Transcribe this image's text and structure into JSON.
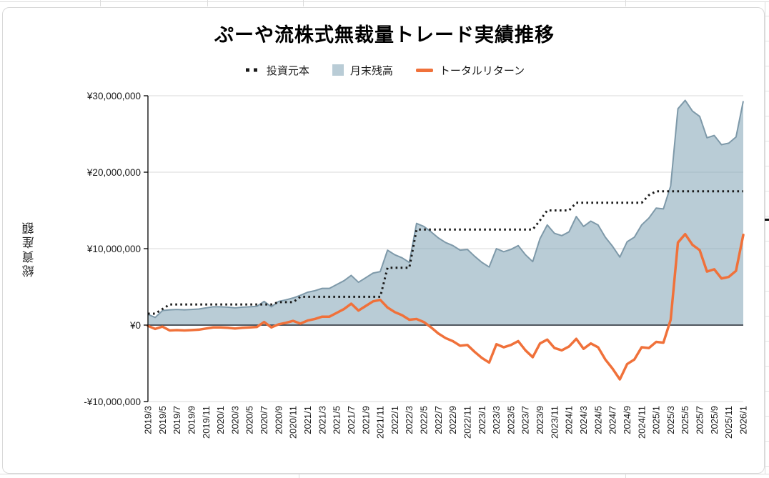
{
  "chart_data": {
    "type": "area",
    "title": "ぷーや流株式無裁量トレード実績推移",
    "ylabel": "総資産額",
    "values_unit": "million JPY",
    "ylim_m": [
      -10,
      30
    ],
    "grid": true,
    "legend_position": "top",
    "x_tick_every": 2,
    "y_ticks": [
      {
        "label": "¥30,000,000",
        "value_m": 30
      },
      {
        "label": "¥20,000,000",
        "value_m": 20
      },
      {
        "label": "¥10,000,000",
        "value_m": 10
      },
      {
        "label": "¥0",
        "value_m": 0
      },
      {
        "label": "-¥10,000,000",
        "value_m": -10
      }
    ],
    "x": [
      "2019/3",
      "2019/4",
      "2019/5",
      "2019/6",
      "2019/7",
      "2019/8",
      "2019/9",
      "2019/10",
      "2019/11",
      "2019/12",
      "2020/1",
      "2020/2",
      "2020/3",
      "2020/4",
      "2020/5",
      "2020/6",
      "2020/7",
      "2020/8",
      "2020/9",
      "2020/10",
      "2020/11",
      "2020/12",
      "2021/1",
      "2021/2",
      "2021/3",
      "2021/4",
      "2021/5",
      "2021/6",
      "2021/7",
      "2021/8",
      "2021/9",
      "2021/10",
      "2021/11",
      "2021/12",
      "2022/1",
      "2022/2",
      "2022/3",
      "2022/4",
      "2022/5",
      "2022/6",
      "2022/7",
      "2022/8",
      "2022/9",
      "2022/10",
      "2022/11",
      "2022/12",
      "2023/1",
      "2023/2",
      "2023/3",
      "2023/4",
      "2023/5",
      "2023/6",
      "2023/7",
      "2023/8",
      "2023/9",
      "2023/10",
      "2023/11",
      "2023/12",
      "2024/1",
      "2024/2",
      "2024/3",
      "2024/4",
      "2024/5",
      "2024/6",
      "2024/7",
      "2024/8",
      "2024/9",
      "2024/10",
      "2024/11",
      "2024/12",
      "2025/1",
      "2025/2",
      "2025/3",
      "2025/4",
      "2025/5",
      "2025/6",
      "2025/7",
      "2025/8",
      "2025/9",
      "2025/10",
      "2025/11",
      "2025/12",
      "2026/1"
    ],
    "series": [
      {
        "name": "投資元本",
        "style": "dotted-line",
        "color": "#1a1a1a",
        "values_m": [
          1.5,
          1.5,
          2.1,
          2.7,
          2.7,
          2.7,
          2.7,
          2.7,
          2.7,
          2.7,
          2.7,
          2.7,
          2.7,
          2.7,
          2.7,
          2.7,
          2.7,
          2.7,
          3.0,
          3.0,
          3.0,
          3.7,
          3.7,
          3.7,
          3.7,
          3.7,
          3.7,
          3.7,
          3.7,
          3.7,
          3.7,
          3.7,
          3.7,
          7.5,
          7.5,
          7.5,
          7.5,
          12.5,
          12.5,
          12.5,
          12.5,
          12.5,
          12.5,
          12.5,
          12.5,
          12.5,
          12.5,
          12.5,
          12.5,
          12.5,
          12.5,
          12.5,
          12.5,
          12.5,
          13.7,
          15.0,
          15.0,
          15.0,
          15.0,
          16.0,
          16.0,
          16.0,
          16.0,
          16.0,
          16.0,
          16.0,
          16.0,
          16.0,
          16.0,
          17.0,
          17.5,
          17.5,
          17.5,
          17.5,
          17.5,
          17.5,
          17.5,
          17.5,
          17.5,
          17.5,
          17.5,
          17.5,
          17.5
        ]
      },
      {
        "name": "月末残高",
        "style": "area",
        "color": "#b9ccd6",
        "stroke": "#7e99a9",
        "values_m": [
          1.4,
          1.0,
          1.9,
          2.0,
          2.05,
          2.0,
          2.05,
          2.1,
          2.25,
          2.4,
          2.4,
          2.35,
          2.25,
          2.35,
          2.4,
          2.45,
          3.1,
          2.4,
          3.1,
          3.3,
          3.55,
          3.9,
          4.3,
          4.5,
          4.8,
          4.8,
          5.3,
          5.8,
          6.5,
          5.6,
          6.2,
          6.8,
          7.0,
          9.8,
          9.2,
          8.8,
          8.2,
          13.3,
          12.9,
          12.2,
          11.4,
          10.8,
          10.4,
          9.8,
          9.9,
          9.0,
          8.2,
          7.6,
          10.0,
          9.6,
          9.9,
          10.4,
          9.2,
          8.3,
          11.3,
          13.1,
          12.0,
          11.7,
          12.2,
          14.2,
          12.9,
          13.6,
          13.1,
          11.5,
          10.3,
          8.9,
          10.9,
          11.5,
          13.1,
          14.0,
          15.3,
          15.2,
          18.2,
          28.3,
          29.4,
          28.0,
          27.3,
          24.5,
          24.8,
          23.6,
          23.8,
          24.6,
          29.3
        ]
      },
      {
        "name": "トータルリターン",
        "style": "line",
        "color": "#f0713a",
        "values_m": [
          -0.1,
          -0.5,
          -0.2,
          -0.7,
          -0.65,
          -0.7,
          -0.65,
          -0.6,
          -0.45,
          -0.3,
          -0.3,
          -0.35,
          -0.45,
          -0.35,
          -0.3,
          -0.25,
          0.4,
          -0.3,
          0.1,
          0.3,
          0.55,
          0.2,
          0.6,
          0.8,
          1.1,
          1.1,
          1.6,
          2.1,
          2.8,
          1.9,
          2.5,
          3.1,
          3.3,
          2.3,
          1.7,
          1.3,
          0.7,
          0.8,
          0.4,
          -0.3,
          -1.1,
          -1.7,
          -2.1,
          -2.7,
          -2.6,
          -3.5,
          -4.3,
          -4.9,
          -2.5,
          -2.9,
          -2.6,
          -2.1,
          -3.3,
          -4.2,
          -2.4,
          -1.9,
          -3.0,
          -3.3,
          -2.8,
          -1.8,
          -3.1,
          -2.4,
          -2.9,
          -4.5,
          -5.7,
          -7.1,
          -5.1,
          -4.5,
          -2.9,
          -3.0,
          -2.2,
          -2.3,
          0.7,
          10.8,
          11.9,
          10.5,
          9.8,
          7.0,
          7.3,
          6.1,
          6.3,
          7.1,
          11.8
        ]
      }
    ],
    "colors": {
      "grid": "#d9d9d9",
      "zero_line": "#3c434b",
      "axis": "#000000",
      "tick_text": "#1a1a1a"
    }
  }
}
